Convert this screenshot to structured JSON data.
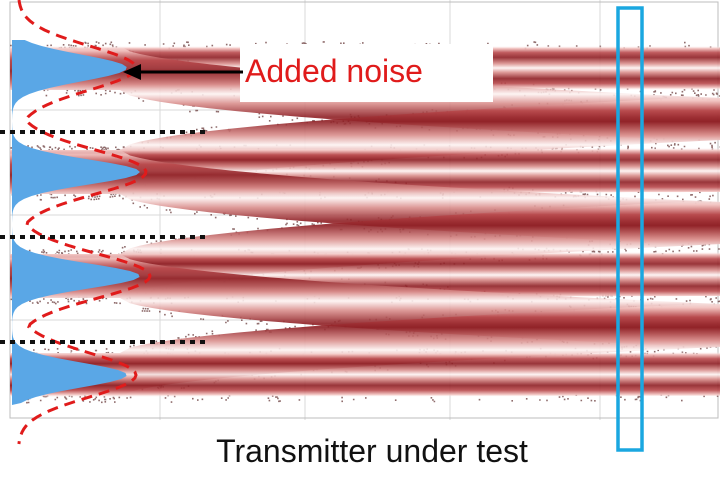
{
  "annotation": {
    "text": "Added noise",
    "color": "#e01b1b"
  },
  "caption": {
    "text": "Transmitter under test"
  },
  "colors": {
    "eye_dark": "#8e1f24",
    "eye_light": "#fdf3f2",
    "histogram_fill": "#5aa7e6",
    "noise_curve": "#e01b1b",
    "marker_box": "#1aa7e0",
    "threshold": "#111111",
    "grid": "#d9d9d9"
  },
  "icons": {
    "arrow": "left-arrow-icon",
    "marker": "sampling-window-box"
  }
}
